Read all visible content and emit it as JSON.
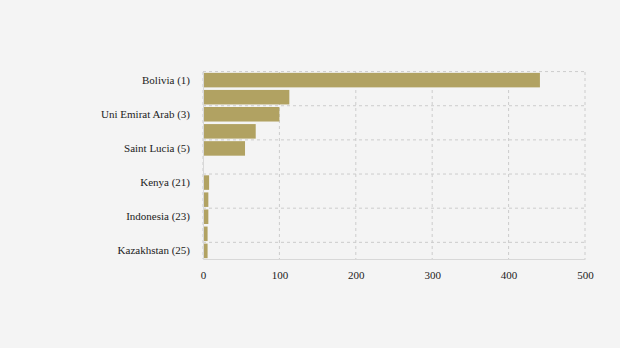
{
  "chart_data": {
    "type": "bar",
    "orientation": "horizontal",
    "categories": [
      "Bolivia (1)",
      null,
      "Uni Emirat Arab (3)",
      null,
      "Saint Lucia (5)",
      null,
      "Kenya (21)",
      null,
      "Indonesia (23)",
      null,
      "Kazakhstan (25)"
    ],
    "values": [
      441,
      113,
      100,
      69,
      55,
      null,
      8,
      7,
      7,
      6,
      6
    ],
    "color": "#b1a262",
    "xlim": [
      0,
      500
    ],
    "xticks": [
      0,
      100,
      200,
      300,
      400,
      500
    ],
    "grid": true
  }
}
